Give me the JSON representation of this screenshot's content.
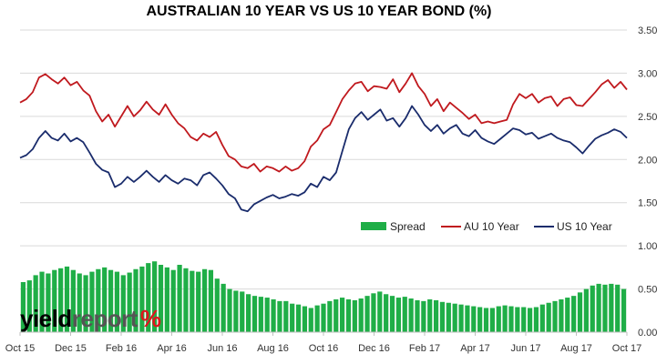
{
  "chart_data": {
    "type": "line",
    "title": "AUSTRALIAN 10 YEAR VS US 10 YEAR BOND (%)",
    "x_tick_labels": [
      "Oct 15",
      "Dec 15",
      "Feb 16",
      "Apr 16",
      "Jun 16",
      "Aug 16",
      "Oct 16",
      "Dec 16",
      "Feb 17",
      "Apr 17",
      "Jun 17",
      "Aug 17",
      "Oct 17"
    ],
    "y_ticks": [
      "0.00",
      "0.50",
      "1.00",
      "1.50",
      "2.00",
      "2.50",
      "3.00",
      "3.50"
    ],
    "ylim": [
      0,
      3.5
    ],
    "y_axis_side": "right",
    "grid": "horizontal",
    "legend_placement": "inside-lower-right",
    "series": [
      {
        "name": "Spread",
        "type": "bar",
        "color": "#1fae47",
        "values": [
          0.58,
          0.6,
          0.66,
          0.7,
          0.68,
          0.72,
          0.74,
          0.76,
          0.72,
          0.68,
          0.66,
          0.7,
          0.73,
          0.75,
          0.72,
          0.7,
          0.66,
          0.69,
          0.73,
          0.76,
          0.8,
          0.82,
          0.78,
          0.75,
          0.72,
          0.78,
          0.74,
          0.71,
          0.7,
          0.73,
          0.72,
          0.62,
          0.56,
          0.5,
          0.48,
          0.47,
          0.44,
          0.42,
          0.41,
          0.4,
          0.38,
          0.36,
          0.36,
          0.33,
          0.32,
          0.3,
          0.28,
          0.31,
          0.33,
          0.36,
          0.38,
          0.4,
          0.38,
          0.37,
          0.39,
          0.42,
          0.45,
          0.47,
          0.44,
          0.42,
          0.4,
          0.41,
          0.39,
          0.37,
          0.36,
          0.38,
          0.37,
          0.35,
          0.34,
          0.33,
          0.32,
          0.31,
          0.3,
          0.29,
          0.28,
          0.28,
          0.3,
          0.31,
          0.3,
          0.29,
          0.29,
          0.28,
          0.29,
          0.32,
          0.34,
          0.36,
          0.38,
          0.4,
          0.42,
          0.46,
          0.5,
          0.54,
          0.56,
          0.55,
          0.56,
          0.55,
          0.5
        ]
      },
      {
        "name": "AU 10 Year",
        "type": "line",
        "color": "#c0191e",
        "values": [
          2.66,
          2.7,
          2.78,
          2.95,
          2.99,
          2.93,
          2.88,
          2.95,
          2.86,
          2.9,
          2.8,
          2.74,
          2.56,
          2.44,
          2.52,
          2.38,
          2.5,
          2.62,
          2.5,
          2.57,
          2.67,
          2.58,
          2.52,
          2.64,
          2.52,
          2.42,
          2.36,
          2.26,
          2.22,
          2.3,
          2.26,
          2.32,
          2.17,
          2.04,
          2.0,
          1.92,
          1.9,
          1.95,
          1.86,
          1.92,
          1.9,
          1.86,
          1.92,
          1.87,
          1.9,
          1.98,
          2.15,
          2.22,
          2.35,
          2.4,
          2.55,
          2.7,
          2.8,
          2.88,
          2.9,
          2.79,
          2.85,
          2.84,
          2.82,
          2.93,
          2.78,
          2.88,
          3.0,
          2.85,
          2.76,
          2.62,
          2.7,
          2.56,
          2.66,
          2.6,
          2.54,
          2.47,
          2.52,
          2.42,
          2.44,
          2.42,
          2.44,
          2.46,
          2.64,
          2.76,
          2.71,
          2.76,
          2.66,
          2.71,
          2.73,
          2.62,
          2.7,
          2.72,
          2.63,
          2.62,
          2.7,
          2.78,
          2.87,
          2.92,
          2.83,
          2.9,
          2.81
        ]
      },
      {
        "name": "US 10 Year",
        "type": "line",
        "color": "#1a2c6c",
        "values": [
          2.02,
          2.05,
          2.12,
          2.25,
          2.33,
          2.25,
          2.22,
          2.3,
          2.21,
          2.25,
          2.2,
          2.08,
          1.95,
          1.88,
          1.85,
          1.68,
          1.72,
          1.8,
          1.74,
          1.8,
          1.87,
          1.8,
          1.74,
          1.82,
          1.76,
          1.72,
          1.78,
          1.76,
          1.7,
          1.82,
          1.85,
          1.78,
          1.7,
          1.6,
          1.55,
          1.42,
          1.4,
          1.48,
          1.52,
          1.56,
          1.59,
          1.55,
          1.57,
          1.6,
          1.58,
          1.62,
          1.72,
          1.68,
          1.8,
          1.76,
          1.85,
          2.1,
          2.35,
          2.48,
          2.55,
          2.46,
          2.52,
          2.58,
          2.45,
          2.48,
          2.38,
          2.48,
          2.62,
          2.52,
          2.4,
          2.33,
          2.4,
          2.3,
          2.36,
          2.4,
          2.3,
          2.27,
          2.34,
          2.25,
          2.21,
          2.18,
          2.24,
          2.3,
          2.36,
          2.34,
          2.29,
          2.31,
          2.24,
          2.27,
          2.3,
          2.25,
          2.22,
          2.2,
          2.14,
          2.07,
          2.16,
          2.24,
          2.28,
          2.31,
          2.35,
          2.32,
          2.25
        ]
      }
    ]
  },
  "branding": {
    "logo_word1": "yield",
    "logo_word2": "report",
    "logo_symbol": "%"
  }
}
